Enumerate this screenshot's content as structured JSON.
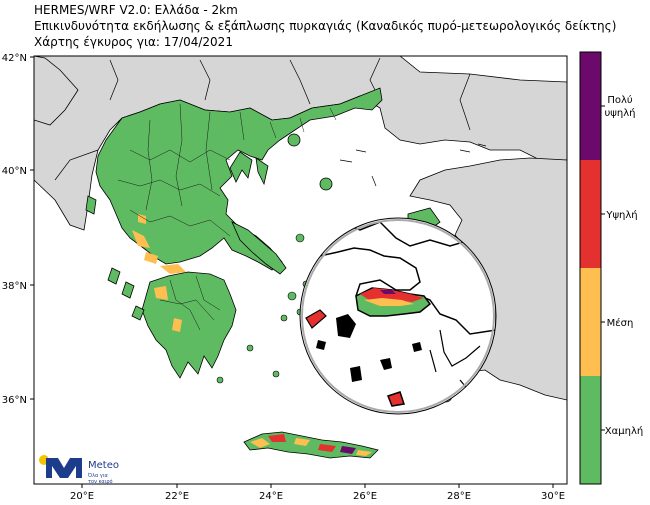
{
  "header": {
    "line1": "HERMES/WRF V2.0: Ελλάδα - 2km",
    "line2": "Επικινδυνότητα εκδήλωσης & εξάπλωσης πυρκαγιάς (Καναδικός πυρό-μετεωρολογικός δείκτης)",
    "line3": "Χάρτης έγκυρος για: 17/04/2021"
  },
  "axes": {
    "lat_ticks": [
      "42°N",
      "40°N",
      "38°N",
      "36°N"
    ],
    "lon_ticks": [
      "20°E",
      "22°E",
      "24°E",
      "26°E",
      "28°E",
      "30°E"
    ]
  },
  "legend": {
    "levels": [
      {
        "label_lines": [
          "Πολύ",
          "υψηλή"
        ],
        "color": "#6b0a6b"
      },
      {
        "label_lines": [
          "Υψηλή"
        ],
        "color": "#e53030"
      },
      {
        "label_lines": [
          "Μέση"
        ],
        "color": "#ffbe50"
      },
      {
        "label_lines": [
          "Χαμηλή"
        ],
        "color": "#5fbb62"
      }
    ]
  },
  "logo": {
    "name": "Meteo",
    "tagline_line1": "Όλα για",
    "tagline_line2": "τον καιρό",
    "brand_color": "#1e3c8c",
    "sun_color": "#f5c400"
  },
  "colors": {
    "land_other": "#d6d6d6",
    "sea": "#ffffff",
    "greece_low": "#5fbb62"
  }
}
